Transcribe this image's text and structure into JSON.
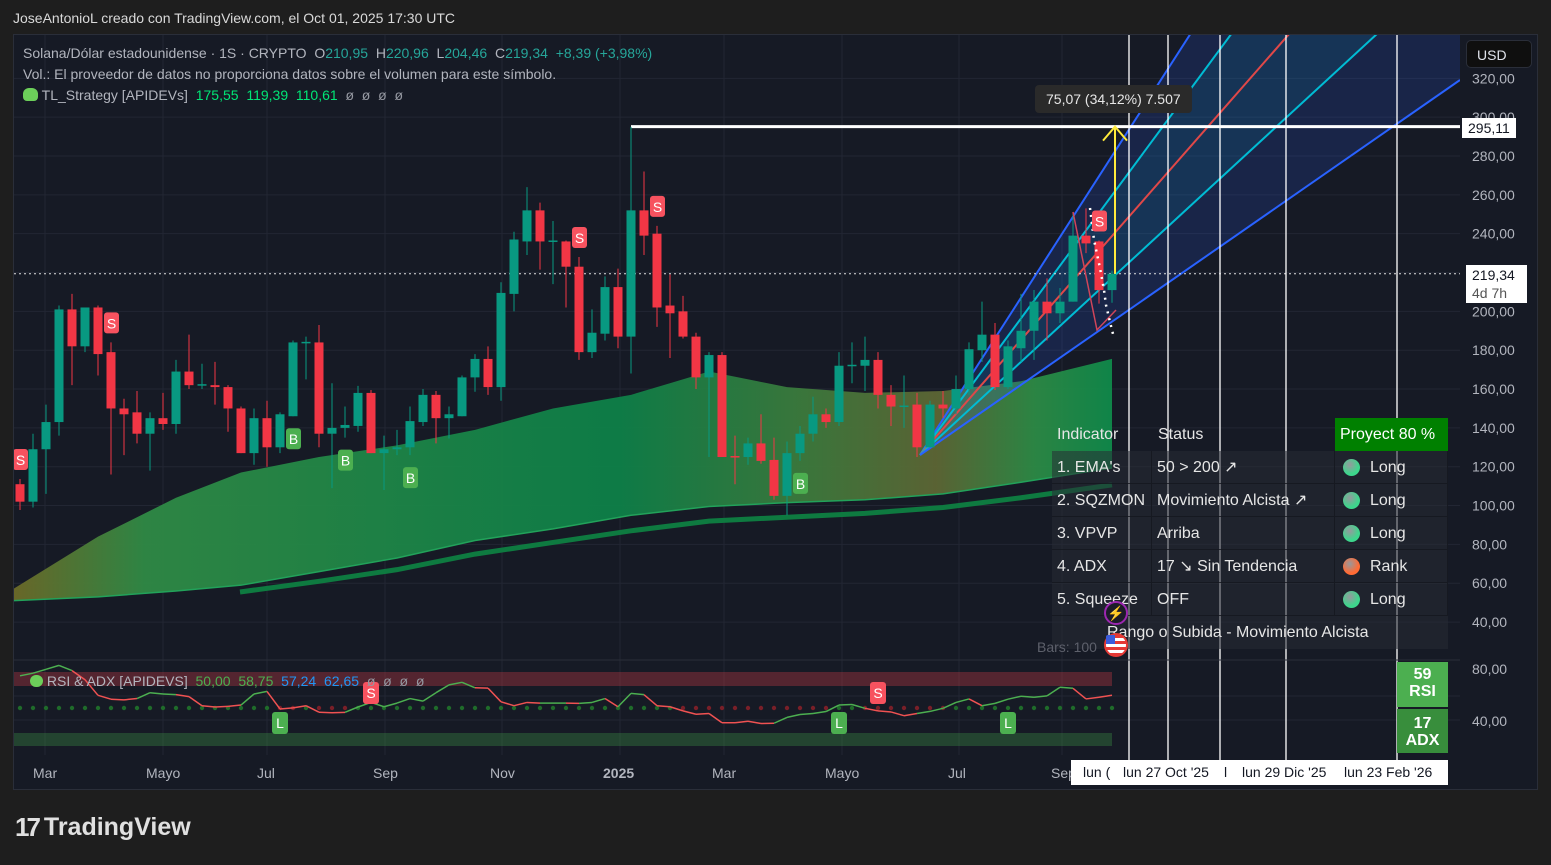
{
  "header": {
    "attribution": "JoseAntonioL creado con TradingView.com, el Oct 01, 2025 17:30 UTC"
  },
  "legend": {
    "symbol": "Solana/Dólar estadounidense · 1S · CRYPTO",
    "o_label": "O",
    "o": "210,95",
    "h_label": "H",
    "h": "220,96",
    "l_label": "L",
    "l": "204,46",
    "c_label": "C",
    "c": "219,34",
    "change": "+8,39 (+3,98%)",
    "volume_note": "Vol.: El proveedor de datos no proporciona datos sobre el volumen para este símbolo.",
    "indicator_name": "TL_Strategy [APIDEVs]",
    "indicator_values": [
      "175,55",
      "119,39",
      "110,61"
    ],
    "indicator_empty": [
      "ø",
      "ø",
      "ø",
      "ø"
    ]
  },
  "currency_button": "USD",
  "price_axis": {
    "ticks": [
      "320,00",
      "300,00",
      "280,00",
      "260,00",
      "240,00",
      "220,00",
      "200,00",
      "180,00",
      "160,00",
      "140,00",
      "120,00",
      "100,00",
      "80,00",
      "60,00",
      "40,00"
    ],
    "ath_label": "295,11",
    "last_price": "219,34",
    "countdown": "4d 7h"
  },
  "measure_label": "75,07 (34,12%) 7.507",
  "time_axis": {
    "ticks": [
      "Mar",
      "Mayo",
      "Jul",
      "Sep",
      "Nov",
      "2025",
      "Mar",
      "Mayo",
      "Jul",
      "Sep"
    ],
    "projection_labels": [
      "lun (",
      "lun 27 Oct '25",
      "l",
      "lun 29 Dic '25",
      "lun 23 Feb '26"
    ]
  },
  "status_table": {
    "headers": [
      "Indicator",
      "Status",
      "Proyect 80 %"
    ],
    "rows": [
      {
        "indicator": "1. EMA's",
        "status": "50 > 200 ↗",
        "signal": "Long",
        "dot": "#3dd68c"
      },
      {
        "indicator": "2. SQZMON",
        "status": "Movimiento Alcista ↗",
        "signal": "Long",
        "dot": "#3dd68c"
      },
      {
        "indicator": "3. VPVP",
        "status": "Arriba",
        "signal": "Long",
        "dot": "#3dd68c"
      },
      {
        "indicator": "4. ADX",
        "status": "17 ↘ Sin Tendencia",
        "signal": "Rank",
        "dot": "#ff6b35"
      },
      {
        "indicator": "5. Squeeze",
        "status": "OFF",
        "signal": "Long",
        "dot": "#3dd68c"
      }
    ],
    "summary": "Rango o Subida - Movimiento Alcista"
  },
  "bars_label": "Bars: 100",
  "rsi_panel": {
    "title": "RSI & ADX [APIDEVS]",
    "values": [
      "50,00",
      "58,75",
      "57,24",
      "62,65"
    ],
    "empty": [
      "ø",
      "ø",
      "ø",
      "ø"
    ],
    "ticks": [
      "80,00",
      "40,00"
    ],
    "rsi_box": {
      "value": "59",
      "label": "RSI"
    },
    "adx_box": {
      "value": "17",
      "label": "ADX"
    }
  },
  "logo": "TradingView",
  "colors": {
    "up": "#089981",
    "down": "#f23645",
    "sell_signal": "#f7525f",
    "buy_signal": "#4caf50",
    "fan_blue": "#2962ff",
    "fan_cyan": "#00bcd4",
    "fan_red": "#e04848",
    "measure_arrow": "#ffeb3b"
  },
  "chart_data": {
    "type": "candlestick",
    "interval": "1 week",
    "ylim": [
      30,
      330
    ],
    "yticks": [
      320,
      300,
      280,
      260,
      240,
      220,
      200,
      180,
      160,
      140,
      120,
      100,
      80,
      60,
      40
    ],
    "grid": true,
    "candles": [
      [
        "2024-02-19",
        111,
        113.7,
        97.7,
        102
      ],
      [
        "2024-02-26",
        102,
        137,
        99,
        129
      ],
      [
        "2024-03-04",
        129,
        152,
        106,
        143
      ],
      [
        "2024-03-11",
        143,
        203,
        136,
        201
      ],
      [
        "2024-03-18",
        201,
        209,
        162,
        182
      ],
      [
        "2024-03-25",
        182,
        202,
        179,
        202
      ],
      [
        "2024-04-01",
        202,
        203,
        167,
        178
      ],
      [
        "2024-04-08",
        179,
        184,
        116,
        150
      ],
      [
        "2024-04-15",
        150,
        155,
        126,
        147
      ],
      [
        "2024-04-22",
        148,
        159,
        132,
        137
      ],
      [
        "2024-04-29",
        137,
        148,
        118,
        145
      ],
      [
        "2024-05-06",
        145,
        158,
        139,
        142
      ],
      [
        "2024-05-13",
        142,
        175,
        137,
        169
      ],
      [
        "2024-05-20",
        169,
        188,
        160,
        162
      ],
      [
        "2024-05-27",
        162,
        173,
        160,
        162.5
      ],
      [
        "2024-06-03",
        162,
        174,
        152,
        161
      ],
      [
        "2024-06-10",
        161,
        162,
        138,
        150
      ],
      [
        "2024-06-17",
        150,
        151,
        127,
        127
      ],
      [
        "2024-06-24",
        127,
        150,
        121,
        145
      ],
      [
        "2024-07-01",
        145,
        154,
        120,
        130
      ],
      [
        "2024-07-08",
        130,
        148,
        127,
        147
      ],
      [
        "2024-07-15",
        146,
        185,
        146,
        184
      ],
      [
        "2024-07-22",
        184,
        187,
        165,
        184.3
      ],
      [
        "2024-07-29",
        184,
        193,
        130,
        137
      ],
      [
        "2024-08-05",
        137,
        163,
        109,
        140
      ],
      [
        "2024-08-12",
        140,
        151,
        135,
        141.5
      ],
      [
        "2024-08-19",
        141,
        161.6,
        138,
        158
      ],
      [
        "2024-08-26",
        158,
        159.5,
        127,
        127
      ],
      [
        "2024-09-02",
        127,
        136,
        108,
        129
      ],
      [
        "2024-09-09",
        129,
        139,
        126,
        130
      ],
      [
        "2024-09-16",
        130,
        151,
        126,
        143.5
      ],
      [
        "2024-09-23",
        143,
        160,
        141,
        157
      ],
      [
        "2024-09-30",
        157,
        159,
        132,
        145
      ],
      [
        "2024-10-07",
        145,
        151,
        134.5,
        147
      ],
      [
        "2024-10-14",
        146,
        167,
        146,
        166
      ],
      [
        "2024-10-21",
        166,
        178,
        158.6,
        175.5
      ],
      [
        "2024-10-28",
        175.5,
        182,
        157,
        161
      ],
      [
        "2024-11-04",
        161,
        215,
        154,
        209.5
      ],
      [
        "2024-11-11",
        209,
        241,
        200,
        237
      ],
      [
        "2024-11-18",
        236,
        264,
        229,
        252
      ],
      [
        "2024-11-25",
        252,
        256,
        221.5,
        236
      ],
      [
        "2024-12-02",
        236,
        246.5,
        214,
        236.5
      ],
      [
        "2024-12-09",
        236,
        236.5,
        202,
        223
      ],
      [
        "2024-12-16",
        223,
        228,
        175,
        179
      ],
      [
        "2024-12-23",
        179,
        201,
        176,
        189
      ],
      [
        "2024-12-30",
        188.5,
        218,
        185,
        212.5
      ],
      [
        "2025-01-06",
        212.5,
        222,
        181,
        187
      ],
      [
        "2025-01-13",
        187,
        295,
        168,
        252
      ],
      [
        "2025-01-20",
        252,
        272,
        229,
        239
      ],
      [
        "2025-01-27",
        240,
        244,
        192,
        202
      ],
      [
        "2025-02-03",
        203,
        219,
        176,
        199
      ],
      [
        "2025-02-10",
        200,
        208,
        186,
        187
      ],
      [
        "2025-02-17",
        187,
        189,
        160,
        166
      ],
      [
        "2025-02-24",
        166,
        179,
        125,
        177.5
      ],
      [
        "2025-03-03",
        177.5,
        179,
        125,
        125
      ],
      [
        "2025-03-10",
        125.5,
        136,
        111,
        125
      ],
      [
        "2025-03-17",
        125,
        135,
        121,
        132
      ],
      [
        "2025-03-24",
        132,
        147,
        121.5,
        123
      ],
      [
        "2025-03-31",
        123.5,
        135,
        103,
        105
      ],
      [
        "2025-04-07",
        105,
        133,
        95,
        127
      ],
      [
        "2025-04-14",
        127,
        141,
        123,
        137
      ],
      [
        "2025-04-21",
        137,
        156,
        133,
        147
      ],
      [
        "2025-04-28",
        147,
        150,
        140,
        143
      ],
      [
        "2025-05-05",
        143,
        179,
        141,
        172
      ],
      [
        "2025-05-12",
        172,
        184,
        163,
        172.5
      ],
      [
        "2025-05-19",
        172,
        187,
        159,
        175
      ],
      [
        "2025-05-26",
        175,
        179,
        150,
        157
      ],
      [
        "2025-06-02",
        157,
        162,
        141,
        151
      ],
      [
        "2025-06-09",
        151,
        167,
        140,
        151.5
      ],
      [
        "2025-06-16",
        152,
        158,
        125,
        130
      ],
      [
        "2025-06-23",
        130,
        154,
        130,
        152
      ],
      [
        "2025-06-30",
        152,
        159,
        145,
        150
      ],
      [
        "2025-07-07",
        150,
        167,
        147,
        160
      ],
      [
        "2025-07-14",
        160,
        184,
        157,
        180.5
      ],
      [
        "2025-07-21",
        180,
        205,
        174,
        188
      ],
      [
        "2025-07-28",
        188,
        194,
        159.5,
        161
      ],
      [
        "2025-08-04",
        161,
        185,
        160,
        182
      ],
      [
        "2025-08-11",
        181,
        209,
        174,
        190
      ],
      [
        "2025-08-18",
        190,
        211,
        175,
        205
      ],
      [
        "2025-08-25",
        205,
        217,
        185,
        199
      ],
      [
        "2025-09-01",
        199,
        212,
        194,
        205
      ],
      [
        "2025-09-08",
        205,
        251,
        205,
        239
      ],
      [
        "2025-09-15",
        239,
        253,
        230,
        235
      ],
      [
        "2025-09-22",
        236,
        236.5,
        204,
        210.95
      ],
      [
        "2025-09-29",
        210.95,
        220.96,
        204.46,
        219.34
      ]
    ],
    "signals": [
      {
        "date": "2024-02-19",
        "type": "S"
      },
      {
        "date": "2024-04-08",
        "type": "S"
      },
      {
        "date": "2024-07-15",
        "type": "B"
      },
      {
        "date": "2024-08-12",
        "type": "B"
      },
      {
        "date": "2024-09-16",
        "type": "B"
      },
      {
        "date": "2024-12-16",
        "type": "S"
      },
      {
        "date": "2025-01-27",
        "type": "S"
      },
      {
        "date": "2025-04-14",
        "type": "B"
      },
      {
        "date": "2025-09-22",
        "type": "S"
      }
    ],
    "ema_band": {
      "dates": [
        "2024-02-19",
        "2024-04-01",
        "2024-05-13",
        "2024-06-17",
        "2024-07-29",
        "2024-09-09",
        "2024-10-21",
        "2024-12-02",
        "2025-01-13",
        "2025-02-24",
        "2025-04-07",
        "2025-05-19",
        "2025-06-30",
        "2025-08-11",
        "2025-09-29"
      ],
      "upper": [
        57,
        84,
        104,
        117,
        125,
        131,
        139,
        150,
        157,
        169,
        161,
        158,
        159,
        164,
        175.55
      ],
      "middle": [
        51,
        53,
        56,
        59,
        66,
        73,
        82,
        88,
        95,
        99.5,
        101.5,
        103,
        106,
        112,
        119.39
      ],
      "lower": [
        null,
        null,
        null,
        55.5,
        61,
        67,
        75,
        81,
        87,
        92,
        94,
        96,
        99,
        104,
        110.61
      ]
    },
    "ath_level": 295.11,
    "last_price": 219.34,
    "rsi": {
      "ylim": [
        30,
        90
      ],
      "midline": 50,
      "values": [
        74,
        76,
        79,
        82,
        78,
        71,
        59,
        56,
        55.5,
        56.5,
        61,
        60,
        59.5,
        58,
        51,
        50,
        50.5,
        51.5,
        60,
        62,
        48.5,
        49.3,
        51,
        46,
        45.6,
        45.9,
        50,
        53.5,
        50.2,
        53,
        56.5,
        54.5,
        61,
        67,
        69,
        64.8,
        64.5,
        54,
        51,
        53.5,
        53,
        53,
        53,
        52.8,
        53.5,
        56.5,
        50.2,
        60.5,
        59.5,
        51,
        50.2,
        47,
        44.4,
        45,
        37.9,
        37.9,
        39,
        37.3,
        37.5,
        42,
        44.2,
        45,
        46.5,
        51.5,
        51.9,
        49,
        47,
        46.2,
        43.3,
        45,
        46.6,
        49,
        53.5,
        56.2,
        51,
        52.8,
        56,
        58.3,
        57.5,
        58.6,
        65.2,
        64.4,
        56.2,
        57.5,
        59
      ],
      "markers": [
        {
          "date": "2024-07-08",
          "type": "L"
        },
        {
          "date": "2024-08-26",
          "type": "S"
        },
        {
          "date": "2025-05-05",
          "type": "L"
        },
        {
          "date": "2025-05-26",
          "type": "S"
        },
        {
          "date": "2025-08-04",
          "type": "L"
        }
      ]
    }
  }
}
